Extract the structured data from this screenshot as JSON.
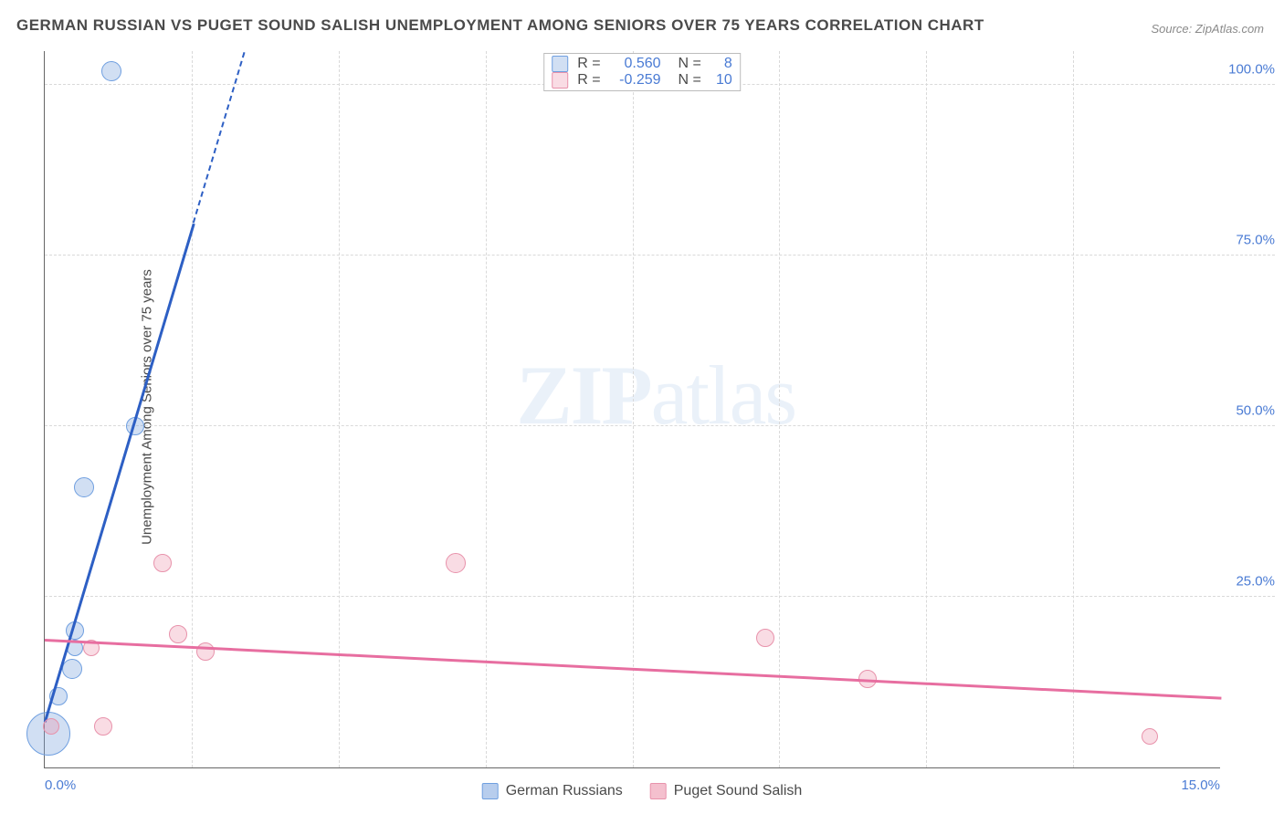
{
  "title": "GERMAN RUSSIAN VS PUGET SOUND SALISH UNEMPLOYMENT AMONG SENIORS OVER 75 YEARS CORRELATION CHART",
  "source": "Source: ZipAtlas.com",
  "ylabel": "Unemployment Among Seniors over 75 years",
  "watermark_bold": "ZIP",
  "watermark_rest": "atlas",
  "chart": {
    "type": "scatter",
    "background_color": "#ffffff",
    "grid_color": "#d9d9d9",
    "axis_color": "#666666",
    "tick_color": "#4a7bd4",
    "xlim": [
      0,
      15
    ],
    "ylim": [
      0,
      105
    ],
    "yticks": [
      {
        "v": 25,
        "label": "25.0%"
      },
      {
        "v": 50,
        "label": "50.0%"
      },
      {
        "v": 75,
        "label": "75.0%"
      },
      {
        "v": 100,
        "label": "100.0%"
      }
    ],
    "xticks": [
      {
        "v": 0,
        "label": "0.0%",
        "pos": "first"
      },
      {
        "v": 15,
        "label": "15.0%",
        "pos": "last"
      }
    ],
    "xgrid": [
      1.875,
      3.75,
      5.625,
      7.5,
      9.375,
      11.25,
      13.125
    ],
    "series": [
      {
        "name": "German Russians",
        "fill": "rgba(124,164,222,0.35)",
        "stroke": "#6f9fe0",
        "line_color": "#2d5fc4",
        "line_width": 2.5,
        "stats": {
          "R": "0.560",
          "N": "8"
        },
        "points": [
          {
            "x": 0.05,
            "y": 5,
            "r": 24
          },
          {
            "x": 0.18,
            "y": 10.5,
            "r": 10
          },
          {
            "x": 0.35,
            "y": 14.5,
            "r": 11
          },
          {
            "x": 0.38,
            "y": 17.5,
            "r": 9
          },
          {
            "x": 0.38,
            "y": 20,
            "r": 10
          },
          {
            "x": 0.5,
            "y": 41,
            "r": 11
          },
          {
            "x": 1.15,
            "y": 50,
            "r": 10
          },
          {
            "x": 0.85,
            "y": 102,
            "r": 11
          }
        ],
        "trend": {
          "x1": 0,
          "y1": 7,
          "x2": 2.55,
          "y2": 105,
          "dash_from_x": 1.9
        }
      },
      {
        "name": "Puget Sound Salish",
        "fill": "rgba(235,140,165,0.30)",
        "stroke": "#e892ab",
        "line_color": "#e76ea0",
        "line_width": 2.5,
        "stats": {
          "R": "-0.259",
          "N": "10"
        },
        "points": [
          {
            "x": 0.08,
            "y": 6,
            "r": 9
          },
          {
            "x": 0.75,
            "y": 6,
            "r": 10
          },
          {
            "x": 0.6,
            "y": 17.5,
            "r": 9
          },
          {
            "x": 1.5,
            "y": 30,
            "r": 10
          },
          {
            "x": 1.7,
            "y": 19.5,
            "r": 10
          },
          {
            "x": 2.05,
            "y": 17,
            "r": 10
          },
          {
            "x": 5.25,
            "y": 30,
            "r": 11
          },
          {
            "x": 9.2,
            "y": 19,
            "r": 10
          },
          {
            "x": 10.5,
            "y": 13,
            "r": 10
          },
          {
            "x": 14.1,
            "y": 4.5,
            "r": 9
          }
        ],
        "trend": {
          "x1": 0,
          "y1": 19,
          "x2": 15,
          "y2": 10.5
        }
      }
    ],
    "legend_bottom": [
      {
        "label": "German Russians",
        "fill": "rgba(124,164,222,0.55)",
        "stroke": "#6f9fe0"
      },
      {
        "label": "Puget Sound Salish",
        "fill": "rgba(235,140,165,0.55)",
        "stroke": "#e892ab"
      }
    ]
  }
}
